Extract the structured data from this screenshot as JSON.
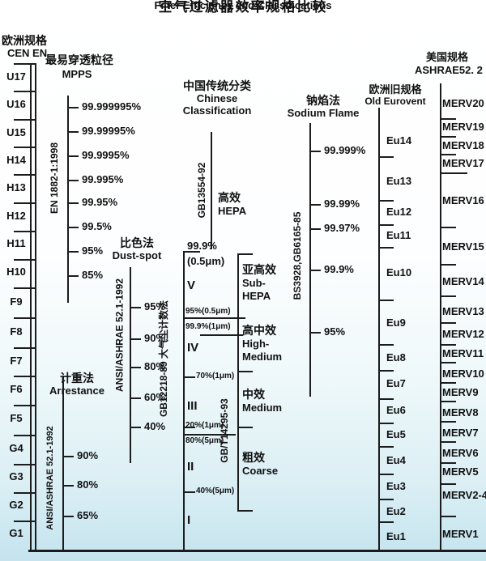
{
  "title": "空气过滤器效率规格比较",
  "subtitle": "Filter Efficiency and Classifications",
  "cen": {
    "header_cn": "欧洲规格",
    "header_en": "CEN EN",
    "standard_vertical": "EN 1882-1:1998",
    "classes": [
      "U17",
      "U16",
      "U15",
      "H14",
      "H13",
      "H12",
      "H11",
      "H10",
      "F9",
      "F8",
      "F7",
      "F6",
      "F5",
      "G4",
      "G3",
      "G2",
      "G1"
    ]
  },
  "mpps": {
    "header_cn": "最易穿透粒径",
    "header_en": "MPPS",
    "values": [
      "99.999995%",
      "99.99995%",
      "99.9995%",
      "99.995%",
      "99.95%",
      "99.5%",
      "95%",
      "85%"
    ]
  },
  "dust_spot": {
    "header_cn": "比色法",
    "header_en": "Dust-spot",
    "standard_vertical": "ANSI/ASHRAE 52.1-1992",
    "values": [
      "95%",
      "90%",
      "80%",
      "60%",
      "40%"
    ]
  },
  "arrestance": {
    "header_cn": "计重法",
    "header_en": "Arrestance",
    "standard_vertical": "ANSI/ASHRAE 52.1-1992",
    "values": [
      "90%",
      "80%",
      "65%"
    ]
  },
  "chinese": {
    "header_cn": "中国传统分类",
    "header_en1": "Chinese",
    "header_en2": "Classification",
    "hepa_standard_vertical": "GB13554-92",
    "count_method_vertical": "GB12218-89 大气尘计数法",
    "gbt_standard_vertical": "GB/T14295-93",
    "hepa_cn": "高效",
    "hepa_en": "HEPA",
    "hepa_value_line1": "99.9%",
    "hepa_value_line2": "(0.5μm)",
    "sub_hepa_cn": "亚高效",
    "sub_hepa_en1": "Sub-",
    "sub_hepa_en2": "HEPA",
    "high_medium_cn": "高中效",
    "high_medium_en1": "High-",
    "high_medium_en2": "Medium",
    "medium_cn": "中效",
    "medium_en": "Medium",
    "coarse_cn": "粗效",
    "coarse_en": "Coarse",
    "roman": [
      "V",
      "IV",
      "III",
      "II",
      "I"
    ],
    "scale_values": [
      "95%(0.5μm)",
      "99.9%(1μm)",
      "70%(1μm)",
      "20%(1μm)",
      "80%(5μm)",
      "40%(5μm)"
    ]
  },
  "sodium": {
    "header_cn": "钠焰法",
    "header_en": "Sodium Flame",
    "standard_vertical": "BS3928,GB6165-85",
    "values": [
      "99.999%",
      "99.99%",
      "99.97%",
      "99.9%",
      "95%"
    ]
  },
  "eurovent": {
    "header_cn": "欧洲旧规格",
    "header_en": "Old Eurovent",
    "classes": [
      "Eu14",
      "Eu13",
      "Eu12",
      "Eu11",
      "Eu10",
      "Eu9",
      "Eu8",
      "Eu7",
      "Eu6",
      "Eu5",
      "Eu4",
      "Eu3",
      "Eu2",
      "Eu1"
    ]
  },
  "merv": {
    "header_cn": "美国规格",
    "header_en": "ASHRAE52. 2",
    "classes": [
      "MERV20",
      "MERV19",
      "MERV18",
      "MERV17",
      "MERV16",
      "MERV15",
      "MERV14",
      "MERV13",
      "MERV12",
      "MERV11",
      "MERV10",
      "MERV9",
      "MERV8",
      "MERV7",
      "MERV6",
      "MERV5",
      "MERV2-4",
      "MERV1"
    ]
  },
  "colors": {
    "line": "#1c1c1c",
    "text": "#111111",
    "background_bottom": "#c9e6f0"
  }
}
